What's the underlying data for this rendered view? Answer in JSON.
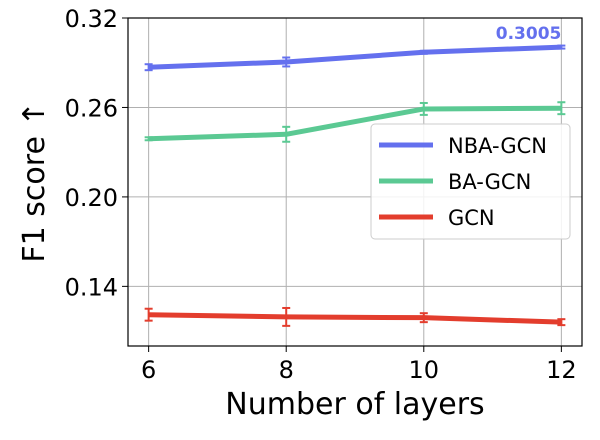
{
  "chart_data": {
    "type": "line",
    "xlabel": "Number of layers",
    "ylabel": "F1 score ↑",
    "x": [
      6,
      8,
      10,
      12
    ],
    "xticks": [
      "6",
      "8",
      "10",
      "12"
    ],
    "xlim": [
      5.7,
      12.3
    ],
    "yticks": [
      "0.14",
      "0.20",
      "0.26",
      "0.32"
    ],
    "ytick_values": [
      0.14,
      0.2,
      0.26,
      0.32
    ],
    "ylim": [
      0.1,
      0.32
    ],
    "grid": true,
    "legend_position": "center-right",
    "series": [
      {
        "name": "NBA-GCN",
        "color": "#6470ee",
        "values": [
          0.287,
          0.2905,
          0.297,
          0.3005
        ],
        "err": [
          0.002,
          0.003,
          0.001,
          0.001
        ]
      },
      {
        "name": "BA-GCN",
        "color": "#5bc993",
        "values": [
          0.239,
          0.242,
          0.259,
          0.2595
        ],
        "err": [
          0.001,
          0.005,
          0.004,
          0.004
        ]
      },
      {
        "name": "GCN",
        "color": "#e33d2d",
        "values": [
          0.121,
          0.1195,
          0.119,
          0.116
        ],
        "err": [
          0.004,
          0.006,
          0.003,
          0.002
        ]
      }
    ],
    "annotation": {
      "text": "0.3005",
      "color": "#6470ee"
    }
  }
}
